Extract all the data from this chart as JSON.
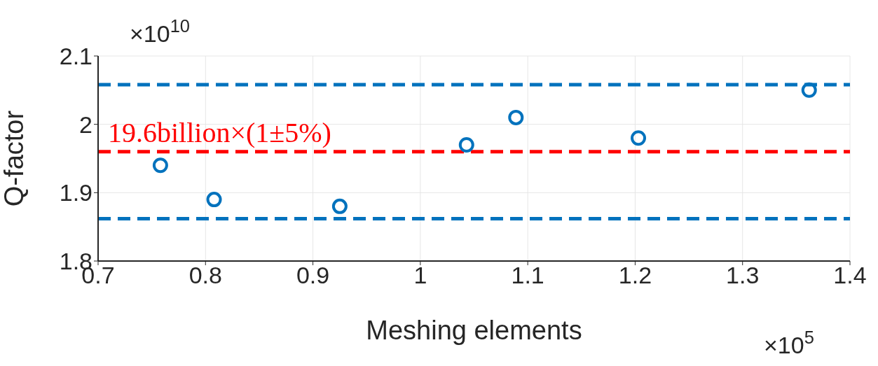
{
  "chart_data": {
    "type": "scatter",
    "xlabel": "Meshing elements",
    "ylabel": "Q-factor",
    "x": [
      0.758,
      0.808,
      0.925,
      1.043,
      1.089,
      1.203,
      1.362
    ],
    "series": [
      {
        "color": "#0072bd",
        "values": [
          1.94,
          1.89,
          1.88,
          1.97,
          2.01,
          1.98,
          2.05
        ]
      }
    ],
    "xlim": [
      0.7,
      1.4
    ],
    "xticks": [
      0.7,
      0.8,
      0.9,
      1,
      1.1,
      1.2,
      1.3,
      1.4
    ],
    "ylim": [
      1.8,
      2.1
    ],
    "yticks": [
      1.8,
      1.9,
      2,
      2.1
    ],
    "ref_lines": [
      {
        "axis": "y",
        "value": 1.96,
        "label": "19.6billion×(1±5%)",
        "color": "#ff0000",
        "line_style": "dashed"
      },
      {
        "axis": "y",
        "value": 2.058,
        "color": "#0072bd",
        "line_style": "dashed"
      },
      {
        "axis": "y",
        "value": 1.862,
        "color": "#0072bd",
        "line_style": "dashed"
      }
    ],
    "annotations": [
      "×10$^{10}$",
      "×10$^{5}$"
    ],
    "grid": true,
    "marker": "circle",
    "legend": false
  }
}
